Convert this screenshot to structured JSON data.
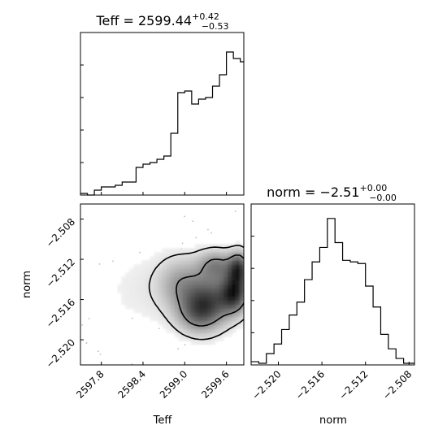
{
  "chart_data": [
    {
      "type": "histogram",
      "panel": "Teff-marginal",
      "title": {
        "prefix": "Teff = 2599.44",
        "sup": "+0.42",
        "sub": "−0.53"
      },
      "x_range": [
        2597.5,
        2599.85
      ],
      "y_range": [
        0,
        1.0
      ],
      "y_ticks": [
        0.2,
        0.4,
        0.6,
        0.8,
        1.0
      ],
      "bin_edges": [
        2597.5,
        2597.6,
        2597.7,
        2597.8,
        2597.9,
        2598.0,
        2598.1,
        2598.2,
        2598.3,
        2598.4,
        2598.5,
        2598.6,
        2598.7,
        2598.8,
        2598.9,
        2599.0,
        2599.1,
        2599.2,
        2599.3,
        2599.4,
        2599.5,
        2599.6,
        2599.7,
        2599.8,
        2599.85
      ],
      "counts": [
        0.01,
        0.0,
        0.03,
        0.05,
        0.05,
        0.06,
        0.08,
        0.08,
        0.17,
        0.19,
        0.2,
        0.22,
        0.24,
        0.38,
        0.63,
        0.64,
        0.56,
        0.59,
        0.6,
        0.67,
        0.74,
        0.88,
        0.84,
        0.82
      ]
    },
    {
      "type": "contour",
      "panel": "Teff-norm-2d",
      "xlabel": "Teff",
      "ylabel": "norm",
      "x_range": [
        2597.5,
        2599.85
      ],
      "y_range": [
        -2.5225,
        -2.5065
      ],
      "x_ticks": [
        "2597.8",
        "2598.4",
        "2599.0",
        "2599.6"
      ],
      "x_tick_values": [
        2597.8,
        2598.4,
        2599.0,
        2599.6
      ],
      "y_ticks": [
        "−2.508",
        "−2.512",
        "−2.516",
        "−2.520"
      ],
      "y_tick_values": [
        -2.508,
        -2.512,
        -2.516,
        -2.52
      ],
      "density_blobs": [
        {
          "x": 2599.72,
          "y": -2.5153,
          "sx": 0.14,
          "sy": 0.0014,
          "w": 1.0
        },
        {
          "x": 2599.35,
          "y": -2.5162,
          "sx": 0.22,
          "sy": 0.0018,
          "w": 0.8
        },
        {
          "x": 2599.78,
          "y": -2.5128,
          "sx": 0.1,
          "sy": 0.0011,
          "w": 0.85
        },
        {
          "x": 2599.45,
          "y": -2.5125,
          "sx": 0.18,
          "sy": 0.001,
          "w": 0.55
        },
        {
          "x": 2598.95,
          "y": -2.5145,
          "sx": 0.22,
          "sy": 0.0018,
          "w": 0.45
        },
        {
          "x": 2599.15,
          "y": -2.5175,
          "sx": 0.2,
          "sy": 0.0013,
          "w": 0.4
        },
        {
          "x": 2598.4,
          "y": -2.515,
          "sx": 0.45,
          "sy": 0.003,
          "w": 0.1
        }
      ],
      "contour_levels": [
        0.12,
        0.45
      ]
    },
    {
      "type": "histogram",
      "panel": "norm-marginal",
      "title": {
        "prefix": "norm = −2.51",
        "sup": "+0.00",
        "sub": "−0.00"
      },
      "xlabel": "norm",
      "x_range": [
        -2.5225,
        -2.5075
      ],
      "y_range": [
        0,
        1.0
      ],
      "x_ticks": [
        "−2.520",
        "−2.516",
        "−2.512",
        "−2.508"
      ],
      "x_tick_values": [
        -2.52,
        -2.516,
        -2.512,
        -2.508
      ],
      "y_ticks": [
        0.2,
        0.4,
        0.6,
        0.8,
        1.0
      ],
      "bin_edges": [
        -2.5225,
        -2.5218,
        -2.5211,
        -2.5204,
        -2.5197,
        -2.519,
        -2.5183,
        -2.5176,
        -2.5169,
        -2.5162,
        -2.5155,
        -2.5148,
        -2.5141,
        -2.5134,
        -2.5127,
        -2.512,
        -2.5113,
        -2.5106,
        -2.5099,
        -2.5092,
        -2.5085,
        -2.5078,
        -2.5075
      ],
      "counts": [
        0.02,
        0.01,
        0.07,
        0.13,
        0.22,
        0.31,
        0.39,
        0.53,
        0.64,
        0.73,
        0.91,
        0.76,
        0.65,
        0.64,
        0.63,
        0.49,
        0.36,
        0.19,
        0.1,
        0.04,
        0.01,
        0.01
      ]
    }
  ]
}
